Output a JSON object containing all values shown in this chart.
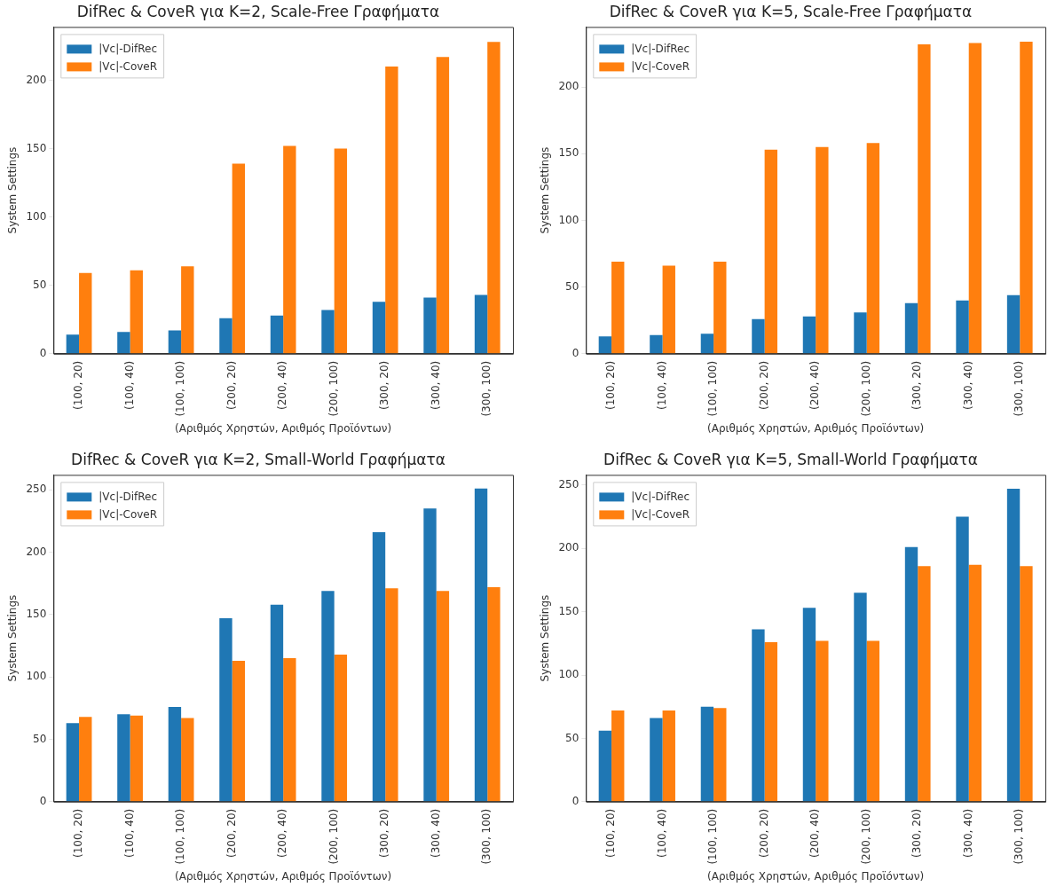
{
  "chart_data": [
    {
      "type": "bar",
      "title": "DifRec & CoveR για K=2, Scale-Free Γραφήματα",
      "xlabel": "(Αριθμός Χρηστών, Αριθμός Προϊόντων)",
      "ylabel": "System Settings",
      "categories": [
        "(100, 20)",
        "(100, 40)",
        "(100, 100)",
        "(200, 20)",
        "(200, 40)",
        "(200, 100)",
        "(300, 20)",
        "(300, 40)",
        "(300, 100)"
      ],
      "series": [
        {
          "name": "|Vc|-DifRec",
          "color": "#1f77b4",
          "values": [
            14,
            16,
            17,
            26,
            28,
            32,
            38,
            41,
            43
          ]
        },
        {
          "name": "|Vc|-CoveR",
          "color": "#ff7f0e",
          "values": [
            59,
            61,
            64,
            139,
            152,
            150,
            210,
            217,
            228
          ]
        }
      ],
      "ylim": [
        0,
        239
      ],
      "yticks": [
        0,
        50,
        100,
        150,
        200
      ],
      "grid": false,
      "legend": "top left"
    },
    {
      "type": "bar",
      "title": "DifRec & CoveR για K=5, Scale-Free Γραφήματα",
      "xlabel": "(Αριθμός Χρηστών, Αριθμός Προϊόντων)",
      "ylabel": "System Settings",
      "categories": [
        "(100, 20)",
        "(100, 40)",
        "(100, 100)",
        "(200, 20)",
        "(200, 40)",
        "(200, 100)",
        "(300, 20)",
        "(300, 40)",
        "(300, 100)"
      ],
      "series": [
        {
          "name": "|Vc|-DifRec",
          "color": "#1f77b4",
          "values": [
            13,
            14,
            15,
            26,
            28,
            31,
            38,
            40,
            44
          ]
        },
        {
          "name": "|Vc|-CoveR",
          "color": "#ff7f0e",
          "values": [
            69,
            66,
            69,
            153,
            155,
            158,
            232,
            233,
            234
          ]
        }
      ],
      "ylim": [
        0,
        245
      ],
      "yticks": [
        0,
        50,
        100,
        150,
        200
      ],
      "grid": false,
      "legend": "top left"
    },
    {
      "type": "bar",
      "title": "DifRec & CoveR για K=2, Small-World Γραφήματα",
      "xlabel": "(Αριθμός Χρηστών, Αριθμός Προϊόντων)",
      "ylabel": "System Settings",
      "categories": [
        "(100, 20)",
        "(100, 40)",
        "(100, 100)",
        "(200, 20)",
        "(200, 40)",
        "(200, 100)",
        "(300, 20)",
        "(300, 40)",
        "(300, 100)"
      ],
      "series": [
        {
          "name": "|Vc|-DifRec",
          "color": "#1f77b4",
          "values": [
            63,
            70,
            76,
            147,
            158,
            169,
            216,
            235,
            251
          ]
        },
        {
          "name": "|Vc|-CoveR",
          "color": "#ff7f0e",
          "values": [
            68,
            69,
            67,
            113,
            115,
            118,
            171,
            169,
            172
          ]
        }
      ],
      "ylim": [
        0,
        262
      ],
      "yticks": [
        0,
        50,
        100,
        150,
        200,
        250
      ],
      "grid": false,
      "legend": "top left"
    },
    {
      "type": "bar",
      "title": "DifRec & CoveR για K=5, Small-World Γραφήματα",
      "xlabel": "(Αριθμός Χρηστών, Αριθμός Προϊόντων)",
      "ylabel": "System Settings",
      "categories": [
        "(100, 20)",
        "(100, 40)",
        "(100, 100)",
        "(200, 20)",
        "(200, 40)",
        "(200, 100)",
        "(300, 20)",
        "(300, 40)",
        "(300, 100)"
      ],
      "series": [
        {
          "name": "|Vc|-DifRec",
          "color": "#1f77b4",
          "values": [
            56,
            66,
            75,
            136,
            153,
            165,
            201,
            225,
            247
          ]
        },
        {
          "name": "|Vc|-CoveR",
          "color": "#ff7f0e",
          "values": [
            72,
            72,
            74,
            126,
            127,
            127,
            186,
            187,
            186
          ]
        }
      ],
      "ylim": [
        0,
        258
      ],
      "yticks": [
        0,
        50,
        100,
        150,
        200,
        250
      ],
      "grid": false,
      "legend": "top left"
    }
  ]
}
